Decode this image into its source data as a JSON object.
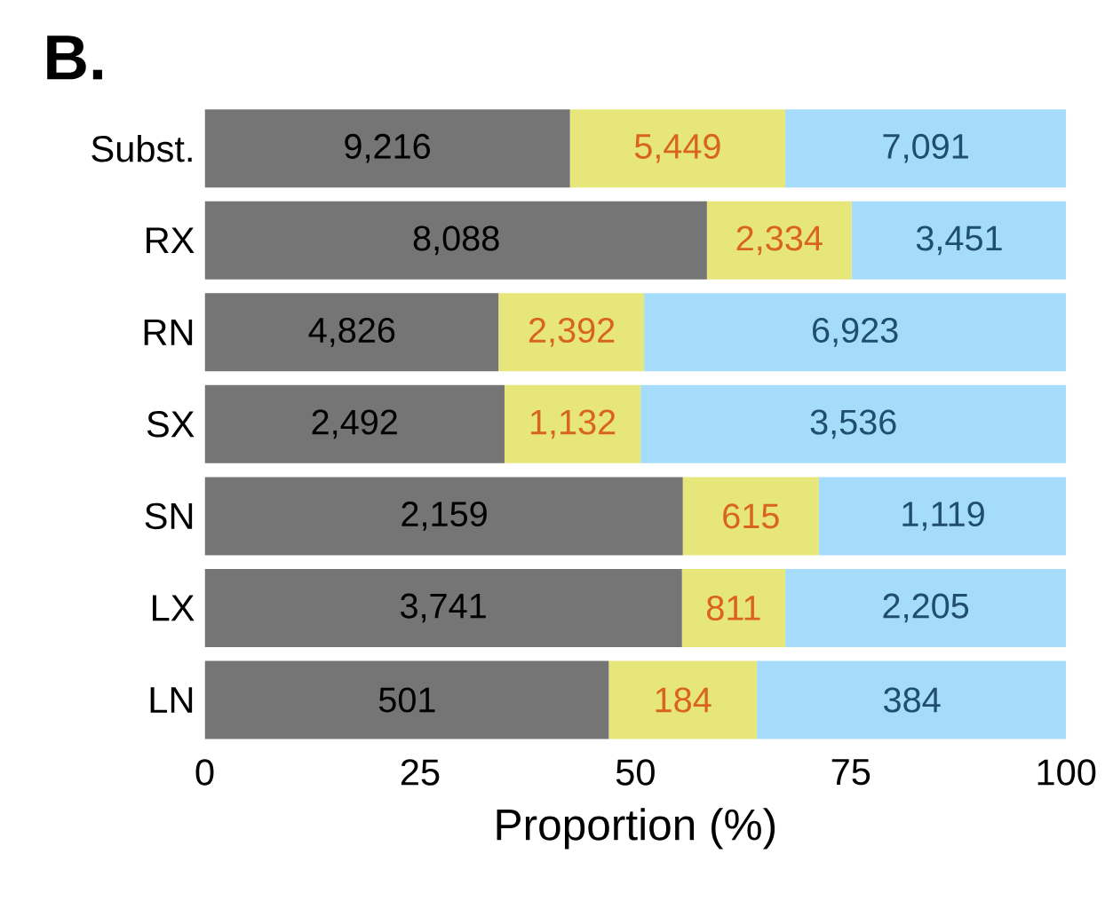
{
  "chart_data": {
    "type": "bar",
    "orientation": "horizontal",
    "stacked": true,
    "title": "B.",
    "xlabel": "Proportion (%)",
    "categories": [
      "Subst.",
      "RX",
      "RN",
      "SX",
      "SN",
      "LX",
      "LN"
    ],
    "series": [
      {
        "color": "#757575",
        "values": [
          42.4,
          58.3,
          34.1,
          34.8,
          55.5,
          55.4,
          46.9
        ]
      },
      {
        "color": "#e6e67a",
        "values": [
          25.0,
          16.8,
          16.9,
          15.8,
          15.8,
          12.0,
          17.2
        ]
      },
      {
        "color": "#a6dcfb",
        "values": [
          32.6,
          24.9,
          49.0,
          49.4,
          28.7,
          32.6,
          35.9
        ]
      }
    ],
    "annotations": [
      {
        "text": "9,216",
        "x": 21.2,
        "y": "Subst."
      },
      {
        "text": "5,449",
        "x": 54.9,
        "y": "Subst."
      },
      {
        "text": "7,091",
        "x": 83.7,
        "y": "Subst."
      },
      {
        "text": "8,088",
        "x": 29.2,
        "y": "RX"
      },
      {
        "text": "2,334",
        "x": 66.7,
        "y": "RX"
      },
      {
        "text": "3,451",
        "x": 87.6,
        "y": "RX"
      },
      {
        "text": "4,826",
        "x": 17.1,
        "y": "RN"
      },
      {
        "text": "2,392",
        "x": 42.6,
        "y": "RN"
      },
      {
        "text": "6,923",
        "x": 75.5,
        "y": "RN"
      },
      {
        "text": "2,492",
        "x": 17.4,
        "y": "SX"
      },
      {
        "text": "1,132",
        "x": 42.7,
        "y": "SX"
      },
      {
        "text": "3,536",
        "x": 75.3,
        "y": "SX"
      },
      {
        "text": "2,159",
        "x": 27.8,
        "y": "SN"
      },
      {
        "text": "615",
        "x": 63.4,
        "y": "SN"
      },
      {
        "text": "1,119",
        "x": 85.7,
        "y": "SN"
      },
      {
        "text": "3,741",
        "x": 27.7,
        "y": "LX"
      },
      {
        "text": "811",
        "x": 61.4,
        "y": "LX"
      },
      {
        "text": "2,205",
        "x": 83.7,
        "y": "LX"
      },
      {
        "text": "501",
        "x": 23.5,
        "y": "LN"
      },
      {
        "text": "184",
        "x": 55.5,
        "y": "LN"
      },
      {
        "text": "384",
        "x": 82.1,
        "y": "LN"
      }
    ],
    "xlim": [
      0,
      100
    ],
    "xticks": [
      0,
      25,
      50,
      75,
      100
    ]
  }
}
